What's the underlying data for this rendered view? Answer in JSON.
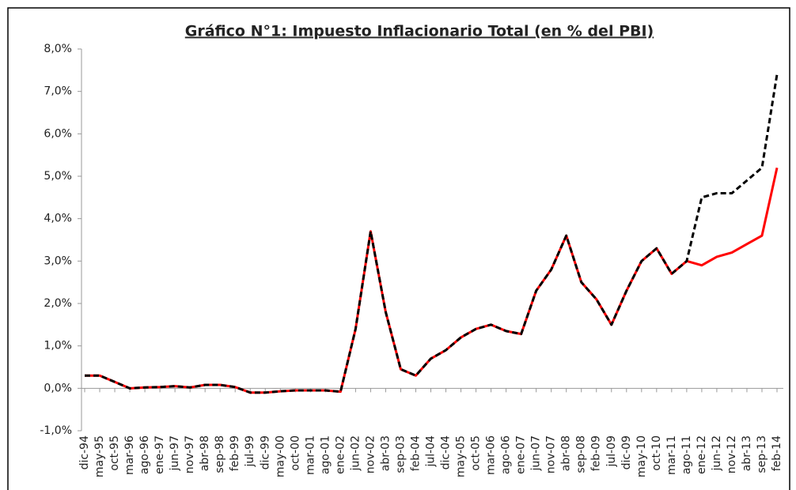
{
  "chart_data": {
    "type": "line",
    "title": "Gráfico N°1: Impuesto Inflacionario Total (en % del PBI)",
    "categories": [
      "dic-94",
      "may-95",
      "oct-95",
      "mar-96",
      "ago-96",
      "ene-97",
      "jun-97",
      "nov-97",
      "abr-98",
      "sep-98",
      "feb-99",
      "jul-99",
      "dic-99",
      "may-00",
      "oct-00",
      "mar-01",
      "ago-01",
      "ene-02",
      "jun-02",
      "nov-02",
      "abr-03",
      "sep-03",
      "feb-04",
      "jul-04",
      "dic-04",
      "may-05",
      "oct-05",
      "mar-06",
      "ago-06",
      "ene-07",
      "jun-07",
      "nov-07",
      "abr-08",
      "sep-08",
      "feb-09",
      "jul-09",
      "dic-09",
      "may-10",
      "oct-10",
      "mar-11",
      "ago-11",
      "ene-12",
      "jun-12",
      "nov-12",
      "abr-13",
      "sep-13",
      "feb-14"
    ],
    "series": [
      {
        "color": "#ff0000",
        "dashed": false,
        "values": [
          0.3,
          0.3,
          0.15,
          0.0,
          0.02,
          0.03,
          0.05,
          0.02,
          0.08,
          0.08,
          0.03,
          -0.1,
          -0.1,
          -0.07,
          -0.05,
          -0.05,
          -0.05,
          -0.08,
          1.4,
          3.7,
          1.8,
          0.45,
          0.3,
          0.7,
          0.9,
          1.2,
          1.4,
          1.5,
          1.35,
          1.28,
          2.3,
          2.8,
          3.6,
          2.5,
          2.1,
          1.5,
          2.3,
          3.0,
          3.3,
          2.7,
          3.0,
          2.9,
          3.1,
          3.2,
          3.4,
          3.6,
          5.2
        ]
      },
      {
        "color": "#000000",
        "dashed": true,
        "values": [
          0.3,
          0.3,
          0.15,
          0.0,
          0.02,
          0.03,
          0.05,
          0.02,
          0.08,
          0.08,
          0.03,
          -0.1,
          -0.1,
          -0.07,
          -0.05,
          -0.05,
          -0.05,
          -0.08,
          1.4,
          3.7,
          1.8,
          0.45,
          0.3,
          0.7,
          0.9,
          1.2,
          1.4,
          1.5,
          1.35,
          1.28,
          2.3,
          2.8,
          3.6,
          2.5,
          2.1,
          1.5,
          2.3,
          3.0,
          3.3,
          2.7,
          3.0,
          4.5,
          4.6,
          4.6,
          4.9,
          5.2,
          7.4
        ]
      }
    ],
    "ylim": [
      -1,
      8
    ],
    "yticks": [
      {
        "value": -1,
        "label": "-1,0%"
      },
      {
        "value": 0,
        "label": "0,0%"
      },
      {
        "value": 1,
        "label": "1,0%"
      },
      {
        "value": 2,
        "label": "2,0%"
      },
      {
        "value": 3,
        "label": "3,0%"
      },
      {
        "value": 4,
        "label": "4,0%"
      },
      {
        "value": 5,
        "label": "5,0%"
      },
      {
        "value": 6,
        "label": "6,0%"
      },
      {
        "value": 7,
        "label": "7,0%"
      },
      {
        "value": 8,
        "label": "8,0%"
      }
    ]
  }
}
